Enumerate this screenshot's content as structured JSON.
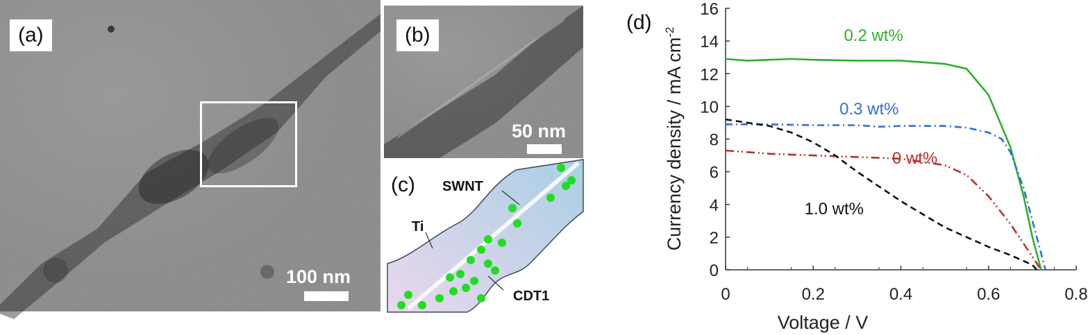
{
  "panels": {
    "a": {
      "label": "(a)",
      "scale_bar": "100 nm"
    },
    "b": {
      "label": "(b)",
      "scale_bar": "50 nm"
    },
    "c": {
      "label": "(c)",
      "swnt": "SWNT",
      "ti": "Ti",
      "cdt": "CDT1",
      "dot_color": "#22dd22",
      "tube_color": "#b9d9ea"
    },
    "d": {
      "label": "(d)"
    }
  },
  "chart_data": {
    "type": "line",
    "xlabel": "Voltage / V",
    "ylabel_main": "Currency density / mA cm",
    "ylabel_sup": "-2",
    "xlim": [
      0,
      0.8
    ],
    "ylim": [
      0,
      16
    ],
    "xticks": [
      "0",
      "0.2",
      "0.4",
      "0.6",
      "0.8"
    ],
    "yticks": [
      "0",
      "2",
      "4",
      "6",
      "8",
      "10",
      "12",
      "14",
      "16"
    ],
    "grid": false,
    "series": [
      {
        "name": "0.2 wt%",
        "color": "#2db02d",
        "dash": "solid",
        "x": [
          0,
          0.05,
          0.1,
          0.15,
          0.2,
          0.3,
          0.4,
          0.5,
          0.55,
          0.6,
          0.65,
          0.68,
          0.7,
          0.72
        ],
        "y": [
          12.9,
          12.8,
          12.85,
          12.9,
          12.85,
          12.8,
          12.8,
          12.6,
          12.3,
          10.7,
          7.5,
          4.5,
          2.0,
          0
        ]
      },
      {
        "name": "0.3 wt%",
        "color": "#2f6fd6",
        "dash": "dashdot",
        "x": [
          0,
          0.1,
          0.2,
          0.3,
          0.35,
          0.4,
          0.5,
          0.55,
          0.6,
          0.63,
          0.65,
          0.68,
          0.7,
          0.72,
          0.73
        ],
        "y": [
          8.9,
          8.9,
          8.85,
          8.85,
          8.75,
          8.8,
          8.8,
          8.7,
          8.4,
          8.0,
          7.2,
          5.0,
          3.0,
          1.0,
          0
        ]
      },
      {
        "name": "0 wt%",
        "color": "#b5302b",
        "dash": "dashdotdot",
        "x": [
          0,
          0.05,
          0.1,
          0.2,
          0.3,
          0.4,
          0.5,
          0.55,
          0.6,
          0.65,
          0.68,
          0.7,
          0.72
        ],
        "y": [
          7.3,
          7.2,
          7.1,
          7.0,
          6.9,
          6.8,
          6.4,
          5.8,
          4.5,
          2.8,
          1.6,
          0.8,
          0
        ]
      },
      {
        "name": "1.0 wt%",
        "color": "#111111",
        "dash": "dash",
        "x": [
          0,
          0.05,
          0.1,
          0.15,
          0.2,
          0.25,
          0.3,
          0.35,
          0.4,
          0.45,
          0.5,
          0.55,
          0.6,
          0.65,
          0.7,
          0.71
        ],
        "y": [
          9.2,
          9.0,
          8.8,
          8.4,
          7.8,
          7.0,
          6.0,
          5.1,
          4.2,
          3.4,
          2.6,
          2.0,
          1.4,
          0.9,
          0.3,
          0
        ]
      }
    ],
    "annotations": [
      {
        "text": "0.2 wt%",
        "series": 0
      },
      {
        "text": "0.3 wt%",
        "series": 1
      },
      {
        "text": "0 wt%",
        "series": 2
      },
      {
        "text": "1.0 wt%",
        "series": 3
      }
    ]
  }
}
